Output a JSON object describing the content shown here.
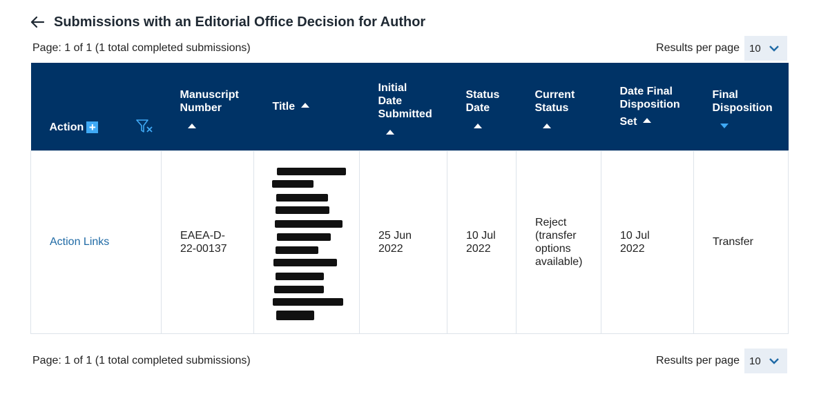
{
  "header": {
    "title": "Submissions with an Editorial Office Decision for Author"
  },
  "pager_top": {
    "text": "Page: 1 of 1 (1 total completed submissions)",
    "rpp_label": "Results per page",
    "rpp_value": "10"
  },
  "pager_bottom": {
    "text": "Page: 1 of 1 (1 total completed submissions)",
    "rpp_label": "Results per page",
    "rpp_value": "10"
  },
  "table": {
    "headers": {
      "action": "Action",
      "manuscript_l1": "Manuscript",
      "manuscript_l2": "Number",
      "title": "Title",
      "initial_l1": "Initial",
      "initial_l2": "Date",
      "initial_l3": "Submitted",
      "status_l1": "Status",
      "status_l2": "Date",
      "current_l1": "Current",
      "current_l2": "Status",
      "final_date_l1": "Date Final",
      "final_date_l2": "Disposition",
      "final_date_l3": "Set",
      "final_disp_l1": "Final",
      "final_disp_l2": "Disposition"
    },
    "rows": [
      {
        "action_link": "Action Links",
        "manuscript_l1": "EAEA-D-",
        "manuscript_l2": "22-00137",
        "initial_l1": "25 Jun",
        "initial_l2": "2022",
        "status_l1": "10 Jul",
        "status_l2": "2022",
        "current_l1": "Reject",
        "current_l2": "(transfer",
        "current_l3": "options",
        "current_l4": "available)",
        "final_date_l1": "10 Jul",
        "final_date_l2": "2022",
        "final_disposition": "Transfer"
      }
    ]
  },
  "colors": {
    "header_bg": "#003366",
    "accent": "#3fa9f5",
    "link": "#1f6aa5"
  },
  "icons": [
    "back-arrow-icon",
    "plus-icon",
    "filter-clear-icon",
    "sort-asc-icon",
    "sort-desc-icon",
    "chevron-down-icon"
  ]
}
